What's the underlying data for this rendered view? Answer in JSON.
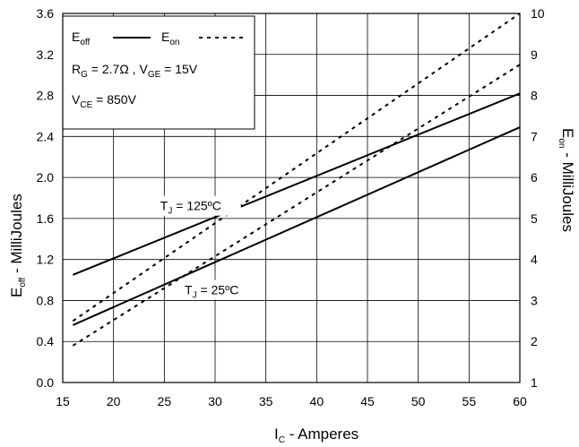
{
  "chart_data": {
    "type": "line",
    "xlabel": {
      "main": "I",
      "sub": "C",
      "rest": " - Amperes"
    },
    "ylabel_left": {
      "main": "E",
      "sub": "off",
      "rest": " - MilliJoules"
    },
    "ylabel_right": {
      "main": "E",
      "sub": "on",
      "rest": " - MilliJoules"
    },
    "xlim": [
      15,
      60
    ],
    "ylim_left": [
      0,
      3.6
    ],
    "ylim_right": [
      1,
      10
    ],
    "x_ticks": [
      "15",
      "20",
      "25",
      "30",
      "35",
      "40",
      "45",
      "50",
      "55",
      "60"
    ],
    "y_ticks_left": [
      "0.0",
      "0.4",
      "0.8",
      "1.2",
      "1.6",
      "2.0",
      "2.4",
      "2.8",
      "3.2",
      "3.6"
    ],
    "y_ticks_right": [
      "1",
      "2",
      "3",
      "4",
      "5",
      "6",
      "7",
      "8",
      "9",
      "10"
    ],
    "grid": true,
    "legend": {
      "placement": "top-left",
      "eoff": {
        "main": "E",
        "sub": "off"
      },
      "eon": {
        "main": "E",
        "sub": "on"
      },
      "line2": {
        "a": "R",
        "a_sub": "G",
        "a_rest": " = 2.7Ω , ",
        "b": "V",
        "b_sub": "GE",
        "b_rest": " = 15V"
      },
      "line3": {
        "a": "V",
        "a_sub": "CE",
        "a_rest": " = 850V"
      }
    },
    "annotations": [
      {
        "main": "T",
        "sub": "J",
        "rest": " = 125ºC",
        "x": 24.6,
        "y": 1.68
      },
      {
        "main": "T",
        "sub": "J",
        "rest": " = 25ºC",
        "x": 27,
        "y": 0.86
      }
    ],
    "series": [
      {
        "style": "solid",
        "axis": "left",
        "x": [
          16,
          60
        ],
        "y": [
          1.05,
          2.82
        ]
      },
      {
        "style": "solid",
        "axis": "left",
        "x": [
          16,
          60
        ],
        "y": [
          0.56,
          2.49
        ]
      },
      {
        "style": "dashed",
        "axis": "right",
        "x": [
          16,
          60
        ],
        "y": [
          2.5,
          10.0
        ]
      },
      {
        "style": "dashed",
        "axis": "right",
        "x": [
          16,
          60
        ],
        "y": [
          1.9,
          8.75
        ]
      }
    ]
  }
}
